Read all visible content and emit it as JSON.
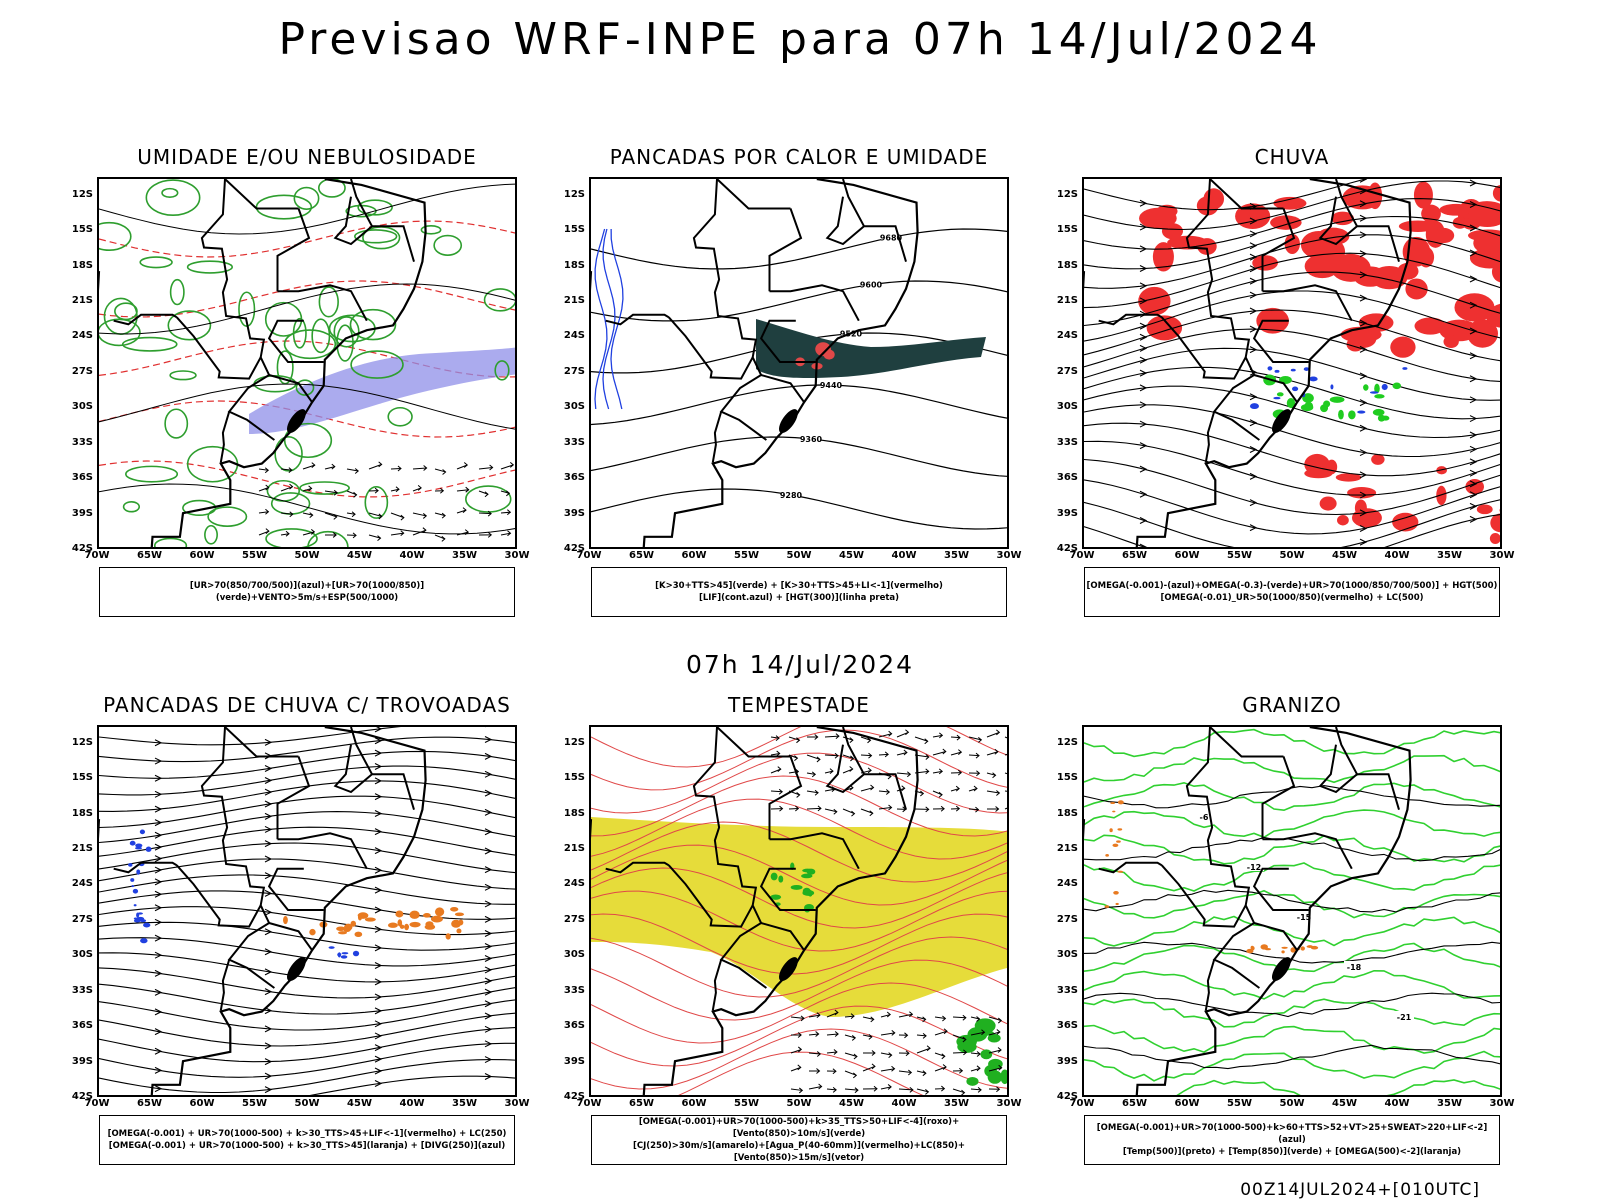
{
  "header": {
    "title": "Previsao WRF-INPE  para 07h 14/Jul/2024",
    "mid_title": "07h 14/Jul/2024",
    "footer": "00Z14JUL2024+[010UTC]"
  },
  "axes": {
    "lat_labels": [
      "12S",
      "15S",
      "18S",
      "21S",
      "24S",
      "27S",
      "30S",
      "33S",
      "36S",
      "39S",
      "42S"
    ],
    "lon_labels": [
      "70W",
      "65W",
      "60W",
      "55W",
      "50W",
      "45W",
      "40W",
      "35W",
      "30W"
    ]
  },
  "panels": [
    {
      "title": "UMIDADE E/OU NEBULOSIDADE",
      "legend": [
        "[UR>70(850/700/500)](azul)+[UR>70(1000/850)](verde)+VENTO>5m/s+ESP(500/1000)"
      ],
      "colors": [
        "#2e9e2e",
        "#8f8fe8",
        "#e03030"
      ]
    },
    {
      "title": "PANCADAS POR CALOR E UMIDADE",
      "legend": [
        "[K>30+TTS>45](verde) + [K>30+TTS>45+LI<-1](vermelho)",
        "[LIF](cont.azul) + [HGT(300)](linha preta)"
      ],
      "contour_labels": [
        "9680",
        "9600",
        "9520",
        "9440",
        "9360",
        "9280"
      ],
      "colors": [
        "#1f3f3f",
        "#e04848",
        "#2040e0"
      ]
    },
    {
      "title": "CHUVA",
      "legend": [
        "[OMEGA(-0.001)-(azul)+OMEGA(-0.3)-(verde)+UR>70(1000/850/700/500)] + HGT(500)",
        "[OMEGA(-0.01)_UR>50(1000/850)(vermelho) + LC(500)"
      ],
      "colors": [
        "#ee3030",
        "#2040e0",
        "#20cc20"
      ]
    },
    {
      "title": "PANCADAS DE CHUVA C/ TROVOADAS",
      "legend": [
        "[OMEGA(-0.001) + UR>70(1000-500) + k>30_TTS>45+LIF<-1](vermelho) + LC(250)",
        "[OMEGA(-0.001) + UR>70(1000-500) + k>30_TTS>45](laranja) + [DIVG(250)](azul)"
      ],
      "colors": [
        "#e87a20",
        "#2040e0"
      ]
    },
    {
      "title": "TEMPESTADE",
      "legend": [
        "[OMEGA(-0.001)+UR>70(1000-500)+k>35_TTS>50+LIF<-4](roxo)+[Vento(850)>10m/s](verde)",
        "[CJ(250)>30m/s](amarelo)+[Agua_P(40-60mm)](vermelho)+LC(850)+[Vento(850)>15m/s](vetor)"
      ],
      "colors": [
        "#e6dc3a",
        "#e04848",
        "#20b020"
      ]
    },
    {
      "title": "GRANIZO",
      "legend": [
        "[OMEGA(-0.001)+UR>70(1000-500)+k>60+TTS>52+VT>25+SWEAT>220+LIF<-2](azul)",
        "[Temp(500)](preto) + [Temp(850)](verde) + [OMEGA(500)<-2](laranja)"
      ],
      "contour_labels": [
        "-6",
        "-12",
        "-15",
        "-18",
        "-21"
      ],
      "colors": [
        "#30d030",
        "#e87a20"
      ]
    }
  ]
}
